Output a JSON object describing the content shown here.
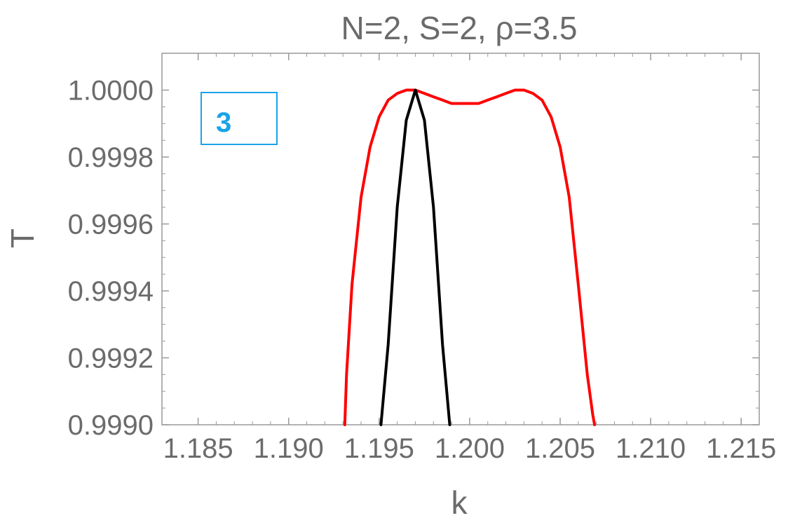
{
  "chart_data": {
    "type": "line",
    "title": "N=2, S=2, ρ=3.5",
    "xlabel": "k",
    "ylabel": "T",
    "xlim": [
      1.183,
      1.216
    ],
    "ylim": [
      0.999,
      1.00011
    ],
    "x_ticks": [
      1.185,
      1.19,
      1.195,
      1.2,
      1.205,
      1.21,
      1.215
    ],
    "x_tick_labels": [
      "1.185",
      "1.190",
      "1.195",
      "1.200",
      "1.205",
      "1.210",
      "1.215"
    ],
    "y_ticks": [
      0.999,
      0.9992,
      0.9994,
      0.9996,
      0.9998,
      1.0
    ],
    "y_tick_labels": [
      "0.9990",
      "0.9992",
      "0.9994",
      "0.9996",
      "0.9998",
      "1.0000"
    ],
    "annotation": "3",
    "annotation_color": "#1aa3e8",
    "frame_color": "#999999",
    "series": [
      {
        "color": "#ff0000",
        "x": [
          1.1931,
          1.1932,
          1.1935,
          1.194,
          1.1945,
          1.195,
          1.1955,
          1.196,
          1.1965,
          1.197,
          1.1975,
          1.198,
          1.1985,
          1.199,
          1.1995,
          1.2,
          1.2005,
          1.201,
          1.2015,
          1.202,
          1.2025,
          1.203,
          1.2035,
          1.204,
          1.2045,
          1.205,
          1.2055,
          1.206,
          1.2065,
          1.2068,
          1.2069
        ],
        "values": [
          0.999,
          0.99915,
          0.99942,
          0.99968,
          0.99983,
          0.99992,
          0.99997,
          0.99999,
          1.0,
          1.0,
          0.99999,
          0.99998,
          0.99997,
          0.99996,
          0.99996,
          0.99996,
          0.99996,
          0.99997,
          0.99998,
          0.99999,
          1.0,
          1.0,
          0.99999,
          0.99997,
          0.99992,
          0.99983,
          0.99968,
          0.99942,
          0.99915,
          0.99903,
          0.999
        ]
      },
      {
        "color": "#000000",
        "x": [
          1.1951,
          1.1955,
          1.196,
          1.1965,
          1.197,
          1.1975,
          1.198,
          1.1985,
          1.1989
        ],
        "values": [
          0.999,
          0.99924,
          0.99965,
          0.99991,
          1.0,
          0.99991,
          0.99965,
          0.99924,
          0.999
        ]
      }
    ]
  }
}
